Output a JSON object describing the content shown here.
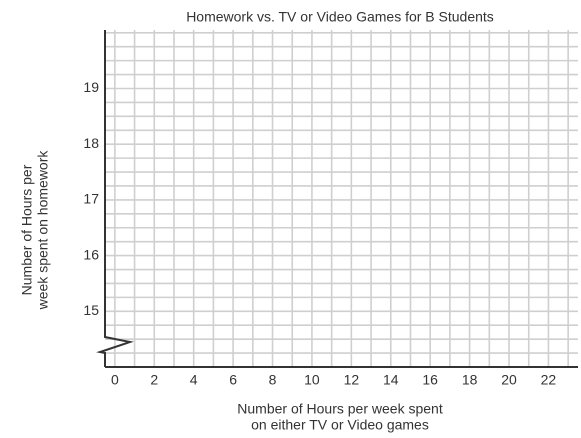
{
  "chart_data": {
    "type": "scatter",
    "title": "Homework vs. TV or Video Games for B Students",
    "xlabel": [
      "Number of Hours per week spent",
      "on either TV or Video games"
    ],
    "ylabel": [
      "Number of Hours per",
      "week spent on homework"
    ],
    "x": [],
    "values": [],
    "xlim": [
      -0.5,
      23.5
    ],
    "ylim": [
      14,
      20.05
    ],
    "xticks": [
      0,
      2,
      4,
      6,
      8,
      10,
      12,
      14,
      16,
      18,
      20,
      22
    ],
    "yticks": [
      15,
      16,
      17,
      18,
      19
    ],
    "grid": true,
    "grid_step": {
      "x": 1,
      "y": 0.25
    },
    "axis_break": "y"
  }
}
